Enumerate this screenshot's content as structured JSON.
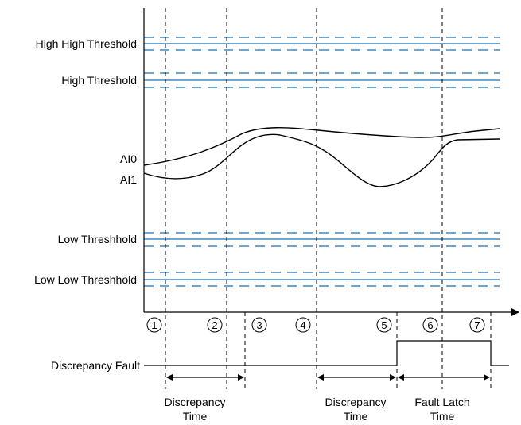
{
  "thresholds": {
    "high_high": "High High Threshold",
    "high": "High Threshold",
    "low": "Low Threshhold",
    "low_low": "Low Low Threshhold"
  },
  "signals": {
    "ai0": "AI0",
    "ai1": "AI1"
  },
  "markers": [
    "1",
    "2",
    "3",
    "4",
    "5",
    "6",
    "7"
  ],
  "fault": {
    "label": "Discrepancy Fault"
  },
  "intervals": {
    "first": [
      "Discrepancy",
      "Time"
    ],
    "second": [
      "Discrepancy",
      "Time"
    ],
    "latch": [
      "Fault Latch",
      "Time"
    ]
  },
  "colors": {
    "threshold_line": "#1a6fb5",
    "signal_line": "#000000"
  }
}
